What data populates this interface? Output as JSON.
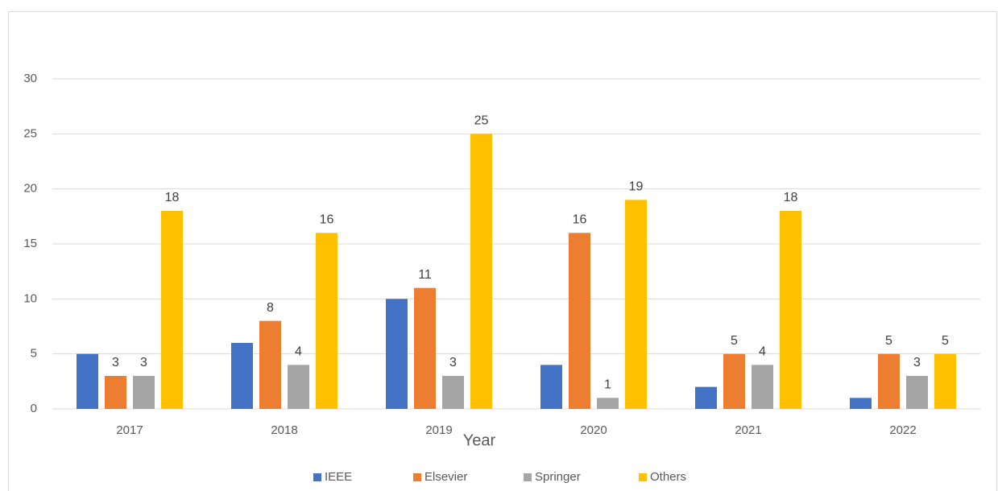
{
  "chart_data": {
    "type": "bar",
    "x_label": "Year",
    "categories": [
      "2017",
      "2018",
      "2019",
      "2020",
      "2021",
      "2022"
    ],
    "series": [
      {
        "name": "IEEE",
        "color": "#4472c4",
        "values": [
          5,
          6,
          10,
          4,
          2,
          1
        ],
        "data_labels": false
      },
      {
        "name": "Elsevier",
        "color": "#ed7d31",
        "values": [
          3,
          8,
          11,
          16,
          5,
          5
        ],
        "data_labels": true
      },
      {
        "name": "Springer",
        "color": "#a5a5a5",
        "values": [
          3,
          4,
          3,
          1,
          4,
          3
        ],
        "data_labels": true
      },
      {
        "name": "Others",
        "color": "#ffc000",
        "values": [
          18,
          16,
          25,
          19,
          18,
          5
        ],
        "data_labels": true
      }
    ],
    "ylim": [
      0,
      30
    ],
    "yticks": [
      0,
      5,
      10,
      15,
      20,
      25,
      30
    ],
    "grid": true,
    "legend": "bottom"
  }
}
